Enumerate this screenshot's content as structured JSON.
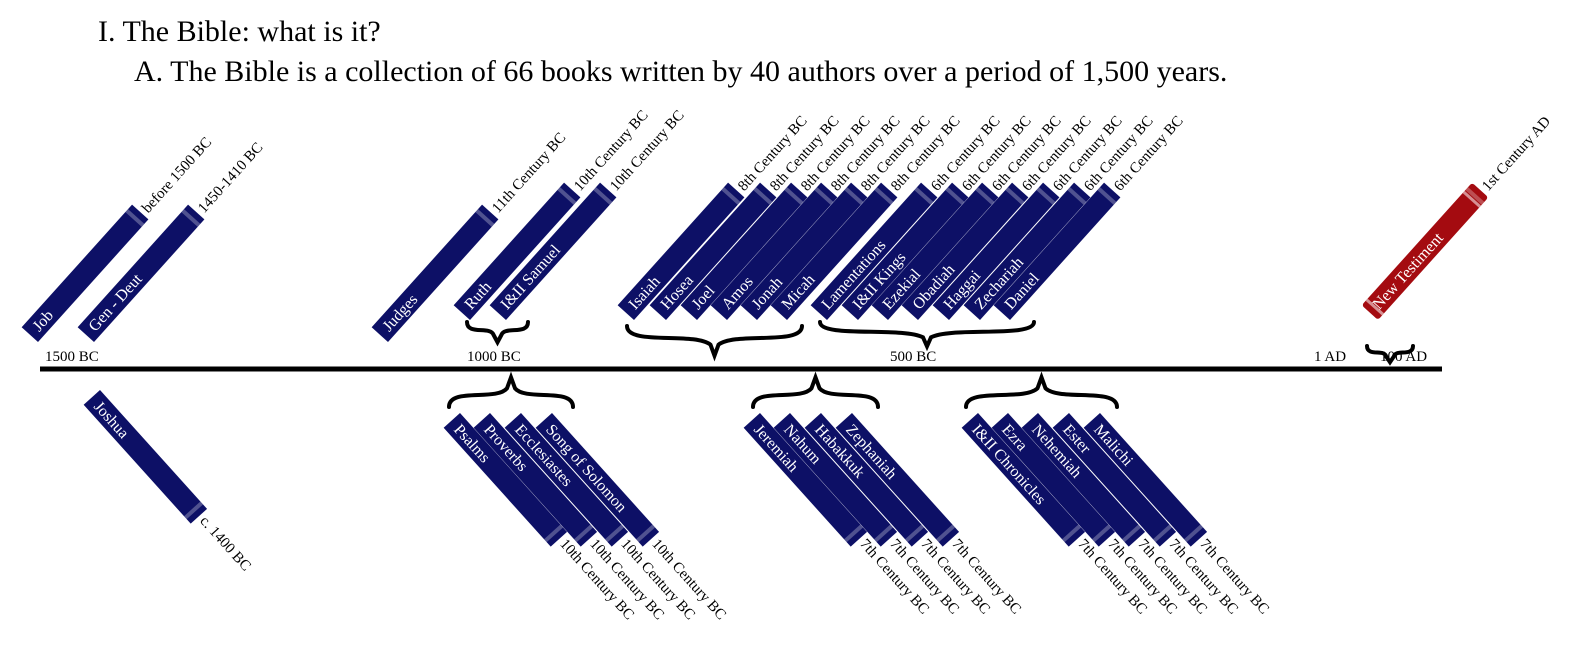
{
  "outline": {
    "heading": "I. The Bible: what is it?",
    "subheading": "A. The Bible is a collection of 66 books written by 40 authors over a period of 1,500 years."
  },
  "colors": {
    "old_testament": "#0d1066",
    "new_testament": "#a40b10",
    "line": "#000000"
  },
  "axis_labels": [
    "1500 BC",
    "1000 BC",
    "500 BC",
    "1 AD",
    "100 AD"
  ],
  "books_above": [
    {
      "name": "Job",
      "date": "before 1500 BC"
    },
    {
      "name": "Gen - Deut",
      "date": "1450-1410 BC"
    },
    {
      "name": "Judges",
      "date": "11th Century BC"
    },
    {
      "name": "Ruth",
      "date": "10th Century BC"
    },
    {
      "name": "I&II Samuel",
      "date": "10th Century BC"
    },
    {
      "name": "Isaiah",
      "date": "8th Century BC"
    },
    {
      "name": "Hosea",
      "date": "8th Century BC"
    },
    {
      "name": "Joel",
      "date": "8th Century BC"
    },
    {
      "name": "Amos",
      "date": "8th Century BC"
    },
    {
      "name": "Jonah",
      "date": "8th Century BC"
    },
    {
      "name": "Micah",
      "date": "8th Century BC"
    },
    {
      "name": "Lamentations",
      "date": "6th Century BC"
    },
    {
      "name": "I&II Kings",
      "date": "6th Century BC"
    },
    {
      "name": "Ezekial",
      "date": "6th Century BC"
    },
    {
      "name": "Obadiah",
      "date": "6th Century BC"
    },
    {
      "name": "Haggai",
      "date": "6th Century BC"
    },
    {
      "name": "Zechariah",
      "date": "6th Century BC"
    },
    {
      "name": "Daniel",
      "date": "6th Century BC"
    },
    {
      "name": "New Testiment",
      "date": "1st Century AD"
    }
  ],
  "books_below": [
    {
      "name": "Joshua",
      "date": "c. 1400 BC"
    },
    {
      "name": "Psalms",
      "date": "10th Century BC"
    },
    {
      "name": "Proverbs",
      "date": "10th Century BC"
    },
    {
      "name": "Ecclesiastes",
      "date": "10th Century BC"
    },
    {
      "name": "Song of Solomon",
      "date": "10th Century BC"
    },
    {
      "name": "Jeremiah",
      "date": "7th Century BC"
    },
    {
      "name": "Nahum",
      "date": "7th Century BC"
    },
    {
      "name": "Habakkuk",
      "date": "7th Century BC"
    },
    {
      "name": "Zephaniah",
      "date": "7th Century BC"
    },
    {
      "name": "I&II Chronicles",
      "date": "7th Century BC"
    },
    {
      "name": "Ezra",
      "date": "7th Century BC"
    },
    {
      "name": "Nehemiah",
      "date": "7th Century BC"
    },
    {
      "name": "Ester",
      "date": "7th Century BC"
    },
    {
      "name": "Malichi",
      "date": "7th Century BC"
    }
  ]
}
